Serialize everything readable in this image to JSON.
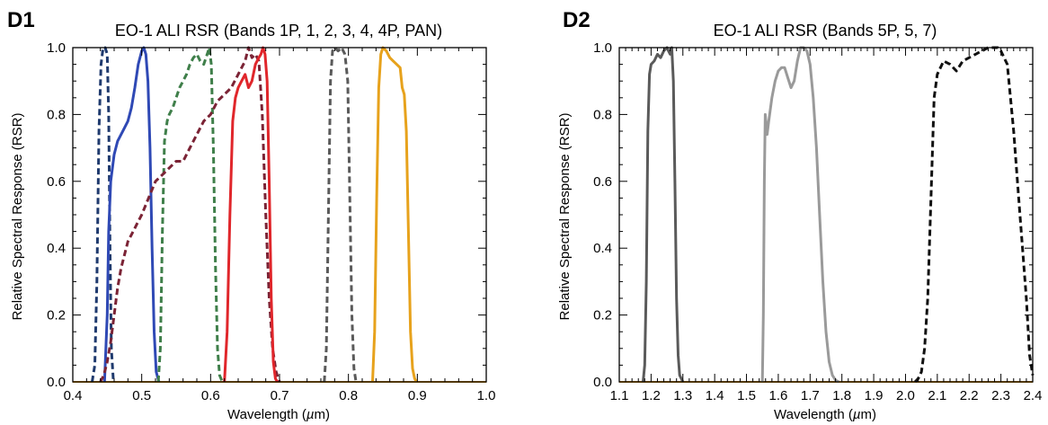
{
  "chart_data": [
    {
      "id": "D1",
      "panel_label": "D1",
      "type": "line",
      "title": "EO-1 ALI RSR (Bands 1P, 1, 2, 3, 4, 4P, PAN)",
      "xlabel_prefix": "Wavelength (",
      "xlabel_mu": "µ",
      "xlabel_suffix": "m)",
      "ylabel": "Relative Spectral Response (RSR)",
      "xlim": [
        0.4,
        1.0
      ],
      "ylim": [
        0.0,
        1.0
      ],
      "xticks": [
        "0.4",
        "0.5",
        "0.6",
        "0.7",
        "0.8",
        "0.9",
        "1.0"
      ],
      "yticks": [
        "0.0",
        "0.2",
        "0.4",
        "0.6",
        "0.8",
        "1.0"
      ],
      "series": [
        {
          "color": "#1f3a6e",
          "dash": true,
          "x": [
            0.428,
            0.432,
            0.435,
            0.438,
            0.441,
            0.444,
            0.447,
            0.45,
            0.452,
            0.454,
            0.456,
            0.459
          ],
          "y": [
            0.0,
            0.05,
            0.3,
            0.75,
            0.95,
            1.0,
            1.0,
            0.98,
            0.8,
            0.4,
            0.1,
            0.0
          ]
        },
        {
          "color": "#2f49b5",
          "dash": false,
          "x": [
            0.446,
            0.45,
            0.452,
            0.455,
            0.46,
            0.465,
            0.47,
            0.475,
            0.48,
            0.485,
            0.49,
            0.495,
            0.5,
            0.503,
            0.506,
            0.509,
            0.512,
            0.515,
            0.518,
            0.521,
            0.525
          ],
          "y": [
            0.0,
            0.2,
            0.45,
            0.6,
            0.68,
            0.72,
            0.74,
            0.76,
            0.78,
            0.82,
            0.88,
            0.95,
            0.99,
            1.0,
            0.98,
            0.9,
            0.7,
            0.4,
            0.15,
            0.03,
            0.0
          ]
        },
        {
          "color": "#3f7f4a",
          "dash": true,
          "x": [
            0.524,
            0.527,
            0.53,
            0.533,
            0.537,
            0.54,
            0.545,
            0.55,
            0.555,
            0.56,
            0.565,
            0.57,
            0.575,
            0.58,
            0.585,
            0.59,
            0.595,
            0.598,
            0.601,
            0.604,
            0.607,
            0.61,
            0.613,
            0.617
          ],
          "y": [
            0.0,
            0.1,
            0.45,
            0.72,
            0.78,
            0.8,
            0.82,
            0.85,
            0.88,
            0.9,
            0.92,
            0.95,
            0.97,
            0.98,
            0.96,
            0.95,
            0.98,
            1.0,
            0.95,
            0.7,
            0.35,
            0.1,
            0.02,
            0.0
          ]
        },
        {
          "color": "#7b2335",
          "dash": true,
          "x": [
            0.44,
            0.445,
            0.45,
            0.455,
            0.46,
            0.465,
            0.47,
            0.475,
            0.48,
            0.485,
            0.49,
            0.495,
            0.5,
            0.51,
            0.52,
            0.53,
            0.54,
            0.55,
            0.56,
            0.57,
            0.58,
            0.59,
            0.6,
            0.61,
            0.62,
            0.63,
            0.64,
            0.65,
            0.655,
            0.66,
            0.665,
            0.67,
            0.675,
            0.68,
            0.685,
            0.69,
            0.695,
            0.7
          ],
          "y": [
            0.0,
            0.02,
            0.06,
            0.12,
            0.2,
            0.28,
            0.34,
            0.38,
            0.42,
            0.44,
            0.46,
            0.48,
            0.5,
            0.55,
            0.6,
            0.62,
            0.64,
            0.66,
            0.66,
            0.7,
            0.74,
            0.78,
            0.8,
            0.84,
            0.86,
            0.88,
            0.92,
            0.96,
            1.0,
            0.97,
            0.98,
            0.96,
            0.8,
            0.5,
            0.25,
            0.1,
            0.03,
            0.0
          ]
        },
        {
          "color": "#e0262b",
          "dash": false,
          "x": [
            0.62,
            0.624,
            0.628,
            0.632,
            0.636,
            0.64,
            0.645,
            0.65,
            0.655,
            0.66,
            0.665,
            0.67,
            0.673,
            0.676,
            0.679,
            0.682,
            0.685,
            0.688,
            0.691,
            0.694,
            0.697
          ],
          "y": [
            0.0,
            0.15,
            0.5,
            0.78,
            0.85,
            0.88,
            0.9,
            0.92,
            0.88,
            0.9,
            0.95,
            0.97,
            0.98,
            1.0,
            0.98,
            0.9,
            0.6,
            0.25,
            0.06,
            0.01,
            0.0
          ]
        },
        {
          "color": "#5a5a5a",
          "dash": true,
          "x": [
            0.765,
            0.768,
            0.771,
            0.774,
            0.777,
            0.78,
            0.785,
            0.79,
            0.795,
            0.799,
            0.802,
            0.805,
            0.808,
            0.811
          ],
          "y": [
            0.0,
            0.1,
            0.5,
            0.9,
            0.99,
            1.0,
            0.99,
            1.0,
            0.98,
            0.9,
            0.55,
            0.2,
            0.04,
            0.0
          ]
        },
        {
          "color": "#e7a21c",
          "dash": false,
          "x": [
            0.835,
            0.838,
            0.841,
            0.844,
            0.847,
            0.85,
            0.855,
            0.86,
            0.865,
            0.87,
            0.875,
            0.878,
            0.881,
            0.884,
            0.887,
            0.89,
            0.893,
            0.896,
            0.899
          ],
          "y": [
            0.0,
            0.15,
            0.55,
            0.88,
            0.98,
            1.0,
            0.99,
            0.97,
            0.96,
            0.95,
            0.94,
            0.88,
            0.86,
            0.75,
            0.45,
            0.15,
            0.04,
            0.01,
            0.0
          ]
        }
      ]
    },
    {
      "id": "D2",
      "panel_label": "D2",
      "type": "line",
      "title": "EO-1 ALI RSR (Bands 5P, 5, 7)",
      "xlabel_prefix": "Wavelength (",
      "xlabel_mu": "µ",
      "xlabel_suffix": "m)",
      "ylabel": "Relative Spectral Response (RSR)",
      "xlim": [
        1.1,
        2.4
      ],
      "ylim": [
        0.0,
        1.0
      ],
      "xticks": [
        "1.1",
        "1.2",
        "1.3",
        "1.4",
        "1.5",
        "1.6",
        "1.7",
        "1.8",
        "1.9",
        "2.0",
        "2.1",
        "2.2",
        "2.3",
        "2.4"
      ],
      "yticks": [
        "0.0",
        "0.2",
        "0.4",
        "0.6",
        "0.8",
        "1.0"
      ],
      "series": [
        {
          "color": "#5a5a5a",
          "dash": false,
          "x": [
            1.175,
            1.18,
            1.185,
            1.19,
            1.195,
            1.2,
            1.21,
            1.22,
            1.23,
            1.24,
            1.25,
            1.255,
            1.26,
            1.265,
            1.27,
            1.275,
            1.28,
            1.285,
            1.29,
            1.3
          ],
          "y": [
            0.0,
            0.05,
            0.3,
            0.75,
            0.92,
            0.95,
            0.96,
            0.98,
            0.97,
            0.99,
            1.0,
            0.99,
            0.98,
            1.0,
            0.9,
            0.6,
            0.25,
            0.08,
            0.02,
            0.0
          ]
        },
        {
          "color": "#9a9a9a",
          "dash": false,
          "x": [
            1.55,
            1.553,
            1.556,
            1.559,
            1.562,
            1.565,
            1.57,
            1.58,
            1.59,
            1.6,
            1.61,
            1.62,
            1.63,
            1.64,
            1.65,
            1.66,
            1.67,
            1.68,
            1.69,
            1.7,
            1.71,
            1.72,
            1.73,
            1.74,
            1.75,
            1.76,
            1.77,
            1.78,
            1.79
          ],
          "y": [
            0.0,
            0.2,
            0.6,
            0.8,
            0.77,
            0.74,
            0.78,
            0.85,
            0.9,
            0.93,
            0.94,
            0.94,
            0.91,
            0.88,
            0.9,
            0.96,
            1.0,
            1.0,
            0.99,
            0.95,
            0.85,
            0.7,
            0.5,
            0.3,
            0.15,
            0.06,
            0.02,
            0.005,
            0.0
          ]
        },
        {
          "color": "#111111",
          "dash": true,
          "x": [
            2.03,
            2.04,
            2.05,
            2.06,
            2.07,
            2.08,
            2.09,
            2.1,
            2.12,
            2.14,
            2.16,
            2.18,
            2.2,
            2.22,
            2.24,
            2.26,
            2.28,
            2.29,
            2.3,
            2.32,
            2.34,
            2.36,
            2.38,
            2.39,
            2.4
          ],
          "y": [
            0.0,
            0.01,
            0.03,
            0.1,
            0.25,
            0.55,
            0.85,
            0.92,
            0.96,
            0.95,
            0.93,
            0.96,
            0.97,
            0.98,
            0.99,
            1.0,
            1.0,
            1.0,
            0.99,
            0.95,
            0.75,
            0.5,
            0.25,
            0.08,
            0.02
          ]
        }
      ]
    }
  ]
}
